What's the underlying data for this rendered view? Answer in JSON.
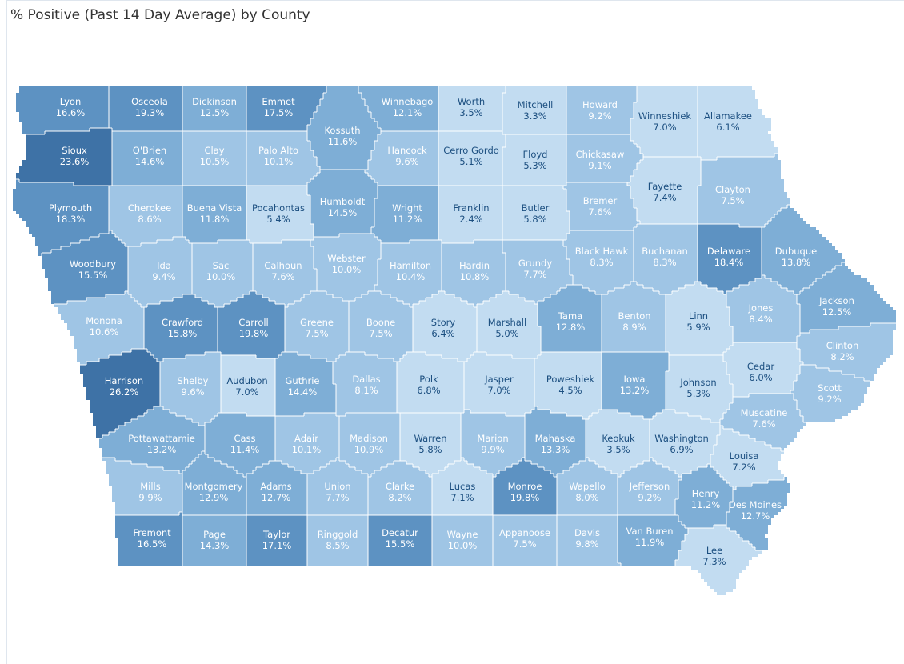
{
  "title": "% Positive (Past 14 Day Average) by County",
  "colors": {
    "scale": [
      "#c2dcf1",
      "#9fc5e5",
      "#7eaed6",
      "#5d92c2",
      "#3e72a6"
    ],
    "label_light": "#ffffff",
    "label_dark": "#1c4f80"
  },
  "counties": [
    {
      "name": "Lyon",
      "value": "16.6%",
      "v": 16.6
    },
    {
      "name": "Osceola",
      "value": "19.3%",
      "v": 19.3
    },
    {
      "name": "Dickinson",
      "value": "12.5%",
      "v": 12.5
    },
    {
      "name": "Emmet",
      "value": "17.5%",
      "v": 17.5
    },
    {
      "name": "Kossuth",
      "value": "11.6%",
      "v": 11.6
    },
    {
      "name": "Winnebago",
      "value": "12.1%",
      "v": 12.1
    },
    {
      "name": "Worth",
      "value": "3.5%",
      "v": 3.5
    },
    {
      "name": "Mitchell",
      "value": "3.3%",
      "v": 3.3
    },
    {
      "name": "Howard",
      "value": "9.2%",
      "v": 9.2
    },
    {
      "name": "Winneshiek",
      "value": "7.0%",
      "v": 7.0
    },
    {
      "name": "Allamakee",
      "value": "6.1%",
      "v": 6.1
    },
    {
      "name": "Sioux",
      "value": "23.6%",
      "v": 23.6
    },
    {
      "name": "O'Brien",
      "value": "14.6%",
      "v": 14.6
    },
    {
      "name": "Clay",
      "value": "10.5%",
      "v": 10.5
    },
    {
      "name": "Palo Alto",
      "value": "10.1%",
      "v": 10.1
    },
    {
      "name": "Hancock",
      "value": "9.6%",
      "v": 9.6
    },
    {
      "name": "Cerro Gordo",
      "value": "5.1%",
      "v": 5.1
    },
    {
      "name": "Floyd",
      "value": "5.3%",
      "v": 5.3
    },
    {
      "name": "Chickasaw",
      "value": "9.1%",
      "v": 9.1
    },
    {
      "name": "Fayette",
      "value": "7.4%",
      "v": 7.4
    },
    {
      "name": "Clayton",
      "value": "7.5%",
      "v": 7.5
    },
    {
      "name": "Plymouth",
      "value": "18.3%",
      "v": 18.3
    },
    {
      "name": "Cherokee",
      "value": "8.6%",
      "v": 8.6
    },
    {
      "name": "Buena Vista",
      "value": "11.8%",
      "v": 11.8
    },
    {
      "name": "Pocahontas",
      "value": "5.4%",
      "v": 5.4
    },
    {
      "name": "Humboldt",
      "value": "14.5%",
      "v": 14.5
    },
    {
      "name": "Wright",
      "value": "11.2%",
      "v": 11.2
    },
    {
      "name": "Franklin",
      "value": "2.4%",
      "v": 2.4
    },
    {
      "name": "Butler",
      "value": "5.8%",
      "v": 5.8
    },
    {
      "name": "Bremer",
      "value": "7.6%",
      "v": 7.6
    },
    {
      "name": "Black Hawk",
      "value": "8.3%",
      "v": 8.3
    },
    {
      "name": "Buchanan",
      "value": "8.3%",
      "v": 8.3
    },
    {
      "name": "Delaware",
      "value": "18.4%",
      "v": 18.4
    },
    {
      "name": "Dubuque",
      "value": "13.8%",
      "v": 13.8
    },
    {
      "name": "Woodbury",
      "value": "15.5%",
      "v": 15.5
    },
    {
      "name": "Ida",
      "value": "9.4%",
      "v": 9.4
    },
    {
      "name": "Sac",
      "value": "10.0%",
      "v": 10.0
    },
    {
      "name": "Calhoun",
      "value": "7.6%",
      "v": 7.6
    },
    {
      "name": "Webster",
      "value": "10.0%",
      "v": 10.0
    },
    {
      "name": "Hamilton",
      "value": "10.4%",
      "v": 10.4
    },
    {
      "name": "Hardin",
      "value": "10.8%",
      "v": 10.8
    },
    {
      "name": "Grundy",
      "value": "7.7%",
      "v": 7.7
    },
    {
      "name": "Jackson",
      "value": "12.5%",
      "v": 12.5
    },
    {
      "name": "Monona",
      "value": "10.6%",
      "v": 10.6
    },
    {
      "name": "Crawford",
      "value": "15.8%",
      "v": 15.8
    },
    {
      "name": "Carroll",
      "value": "19.8%",
      "v": 19.8
    },
    {
      "name": "Greene",
      "value": "7.5%",
      "v": 7.5
    },
    {
      "name": "Boone",
      "value": "7.5%",
      "v": 7.5
    },
    {
      "name": "Story",
      "value": "6.4%",
      "v": 6.4
    },
    {
      "name": "Marshall",
      "value": "5.0%",
      "v": 5.0
    },
    {
      "name": "Tama",
      "value": "12.8%",
      "v": 12.8
    },
    {
      "name": "Benton",
      "value": "8.9%",
      "v": 8.9
    },
    {
      "name": "Linn",
      "value": "5.9%",
      "v": 5.9
    },
    {
      "name": "Jones",
      "value": "8.4%",
      "v": 8.4
    },
    {
      "name": "Clinton",
      "value": "8.2%",
      "v": 8.2
    },
    {
      "name": "Harrison",
      "value": "26.2%",
      "v": 26.2
    },
    {
      "name": "Shelby",
      "value": "9.6%",
      "v": 9.6
    },
    {
      "name": "Audubon",
      "value": "7.0%",
      "v": 7.0
    },
    {
      "name": "Guthrie",
      "value": "14.4%",
      "v": 14.4
    },
    {
      "name": "Dallas",
      "value": "8.1%",
      "v": 8.1
    },
    {
      "name": "Polk",
      "value": "6.8%",
      "v": 6.8
    },
    {
      "name": "Jasper",
      "value": "7.0%",
      "v": 7.0
    },
    {
      "name": "Poweshiek",
      "value": "4.5%",
      "v": 4.5
    },
    {
      "name": "Iowa",
      "value": "13.2%",
      "v": 13.2
    },
    {
      "name": "Johnson",
      "value": "5.3%",
      "v": 5.3
    },
    {
      "name": "Cedar",
      "value": "6.0%",
      "v": 6.0
    },
    {
      "name": "Scott",
      "value": "9.2%",
      "v": 9.2
    },
    {
      "name": "Pottawattamie",
      "value": "13.2%",
      "v": 13.2
    },
    {
      "name": "Cass",
      "value": "11.4%",
      "v": 11.4
    },
    {
      "name": "Adair",
      "value": "10.1%",
      "v": 10.1
    },
    {
      "name": "Madison",
      "value": "10.9%",
      "v": 10.9
    },
    {
      "name": "Warren",
      "value": "5.8%",
      "v": 5.8
    },
    {
      "name": "Marion",
      "value": "9.9%",
      "v": 9.9
    },
    {
      "name": "Mahaska",
      "value": "13.3%",
      "v": 13.3
    },
    {
      "name": "Keokuk",
      "value": "3.5%",
      "v": 3.5
    },
    {
      "name": "Washington",
      "value": "6.9%",
      "v": 6.9
    },
    {
      "name": "Muscatine",
      "value": "7.6%",
      "v": 7.6
    },
    {
      "name": "Louisa",
      "value": "7.2%",
      "v": 7.2
    },
    {
      "name": "Mills",
      "value": "9.9%",
      "v": 9.9
    },
    {
      "name": "Montgomery",
      "value": "12.9%",
      "v": 12.9
    },
    {
      "name": "Adams",
      "value": "12.7%",
      "v": 12.7
    },
    {
      "name": "Union",
      "value": "7.7%",
      "v": 7.7
    },
    {
      "name": "Clarke",
      "value": "8.2%",
      "v": 8.2
    },
    {
      "name": "Lucas",
      "value": "7.1%",
      "v": 7.1
    },
    {
      "name": "Monroe",
      "value": "19.8%",
      "v": 19.8
    },
    {
      "name": "Wapello",
      "value": "8.0%",
      "v": 8.0
    },
    {
      "name": "Jefferson",
      "value": "9.2%",
      "v": 9.2
    },
    {
      "name": "Henry",
      "value": "11.2%",
      "v": 11.2
    },
    {
      "name": "Des Moines",
      "value": "12.7%",
      "v": 12.7
    },
    {
      "name": "Fremont",
      "value": "16.5%",
      "v": 16.5
    },
    {
      "name": "Page",
      "value": "14.3%",
      "v": 14.3
    },
    {
      "name": "Taylor",
      "value": "17.1%",
      "v": 17.1
    },
    {
      "name": "Ringgold",
      "value": "8.5%",
      "v": 8.5
    },
    {
      "name": "Decatur",
      "value": "15.5%",
      "v": 15.5
    },
    {
      "name": "Wayne",
      "value": "10.0%",
      "v": 10.0
    },
    {
      "name": "Appanoose",
      "value": "7.5%",
      "v": 7.5
    },
    {
      "name": "Davis",
      "value": "9.8%",
      "v": 9.8
    },
    {
      "name": "Van Buren",
      "value": "11.9%",
      "v": 11.9
    },
    {
      "name": "Lee",
      "value": "7.3%",
      "v": 7.3
    }
  ]
}
